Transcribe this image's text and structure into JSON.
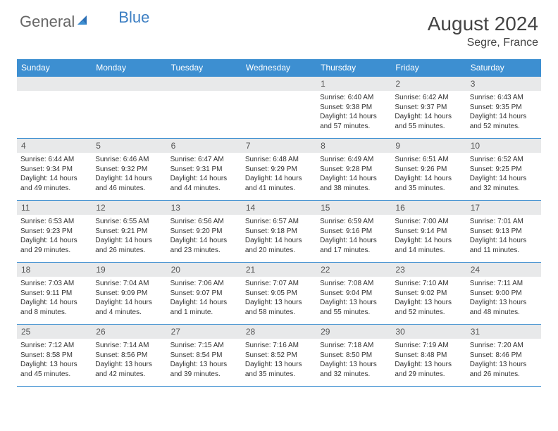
{
  "brand": {
    "part1": "General",
    "part2": "Blue"
  },
  "title": "August 2024",
  "location": "Segre, France",
  "colors": {
    "header_bg": "#3d8fd1",
    "header_text": "#ffffff",
    "daynum_bg": "#e8e9ea",
    "border": "#3d8fd1"
  },
  "dayNames": [
    "Sunday",
    "Monday",
    "Tuesday",
    "Wednesday",
    "Thursday",
    "Friday",
    "Saturday"
  ],
  "weeks": [
    [
      null,
      null,
      null,
      null,
      {
        "n": "1",
        "sunrise": "6:40 AM",
        "sunset": "9:38 PM",
        "daylight": "14 hours and 57 minutes."
      },
      {
        "n": "2",
        "sunrise": "6:42 AM",
        "sunset": "9:37 PM",
        "daylight": "14 hours and 55 minutes."
      },
      {
        "n": "3",
        "sunrise": "6:43 AM",
        "sunset": "9:35 PM",
        "daylight": "14 hours and 52 minutes."
      }
    ],
    [
      {
        "n": "4",
        "sunrise": "6:44 AM",
        "sunset": "9:34 PM",
        "daylight": "14 hours and 49 minutes."
      },
      {
        "n": "5",
        "sunrise": "6:46 AM",
        "sunset": "9:32 PM",
        "daylight": "14 hours and 46 minutes."
      },
      {
        "n": "6",
        "sunrise": "6:47 AM",
        "sunset": "9:31 PM",
        "daylight": "14 hours and 44 minutes."
      },
      {
        "n": "7",
        "sunrise": "6:48 AM",
        "sunset": "9:29 PM",
        "daylight": "14 hours and 41 minutes."
      },
      {
        "n": "8",
        "sunrise": "6:49 AM",
        "sunset": "9:28 PM",
        "daylight": "14 hours and 38 minutes."
      },
      {
        "n": "9",
        "sunrise": "6:51 AM",
        "sunset": "9:26 PM",
        "daylight": "14 hours and 35 minutes."
      },
      {
        "n": "10",
        "sunrise": "6:52 AM",
        "sunset": "9:25 PM",
        "daylight": "14 hours and 32 minutes."
      }
    ],
    [
      {
        "n": "11",
        "sunrise": "6:53 AM",
        "sunset": "9:23 PM",
        "daylight": "14 hours and 29 minutes."
      },
      {
        "n": "12",
        "sunrise": "6:55 AM",
        "sunset": "9:21 PM",
        "daylight": "14 hours and 26 minutes."
      },
      {
        "n": "13",
        "sunrise": "6:56 AM",
        "sunset": "9:20 PM",
        "daylight": "14 hours and 23 minutes."
      },
      {
        "n": "14",
        "sunrise": "6:57 AM",
        "sunset": "9:18 PM",
        "daylight": "14 hours and 20 minutes."
      },
      {
        "n": "15",
        "sunrise": "6:59 AM",
        "sunset": "9:16 PM",
        "daylight": "14 hours and 17 minutes."
      },
      {
        "n": "16",
        "sunrise": "7:00 AM",
        "sunset": "9:14 PM",
        "daylight": "14 hours and 14 minutes."
      },
      {
        "n": "17",
        "sunrise": "7:01 AM",
        "sunset": "9:13 PM",
        "daylight": "14 hours and 11 minutes."
      }
    ],
    [
      {
        "n": "18",
        "sunrise": "7:03 AM",
        "sunset": "9:11 PM",
        "daylight": "14 hours and 8 minutes."
      },
      {
        "n": "19",
        "sunrise": "7:04 AM",
        "sunset": "9:09 PM",
        "daylight": "14 hours and 4 minutes."
      },
      {
        "n": "20",
        "sunrise": "7:06 AM",
        "sunset": "9:07 PM",
        "daylight": "14 hours and 1 minute."
      },
      {
        "n": "21",
        "sunrise": "7:07 AM",
        "sunset": "9:05 PM",
        "daylight": "13 hours and 58 minutes."
      },
      {
        "n": "22",
        "sunrise": "7:08 AM",
        "sunset": "9:04 PM",
        "daylight": "13 hours and 55 minutes."
      },
      {
        "n": "23",
        "sunrise": "7:10 AM",
        "sunset": "9:02 PM",
        "daylight": "13 hours and 52 minutes."
      },
      {
        "n": "24",
        "sunrise": "7:11 AM",
        "sunset": "9:00 PM",
        "daylight": "13 hours and 48 minutes."
      }
    ],
    [
      {
        "n": "25",
        "sunrise": "7:12 AM",
        "sunset": "8:58 PM",
        "daylight": "13 hours and 45 minutes."
      },
      {
        "n": "26",
        "sunrise": "7:14 AM",
        "sunset": "8:56 PM",
        "daylight": "13 hours and 42 minutes."
      },
      {
        "n": "27",
        "sunrise": "7:15 AM",
        "sunset": "8:54 PM",
        "daylight": "13 hours and 39 minutes."
      },
      {
        "n": "28",
        "sunrise": "7:16 AM",
        "sunset": "8:52 PM",
        "daylight": "13 hours and 35 minutes."
      },
      {
        "n": "29",
        "sunrise": "7:18 AM",
        "sunset": "8:50 PM",
        "daylight": "13 hours and 32 minutes."
      },
      {
        "n": "30",
        "sunrise": "7:19 AM",
        "sunset": "8:48 PM",
        "daylight": "13 hours and 29 minutes."
      },
      {
        "n": "31",
        "sunrise": "7:20 AM",
        "sunset": "8:46 PM",
        "daylight": "13 hours and 26 minutes."
      }
    ]
  ],
  "labels": {
    "sunrise": "Sunrise:",
    "sunset": "Sunset:",
    "daylight": "Daylight:"
  }
}
